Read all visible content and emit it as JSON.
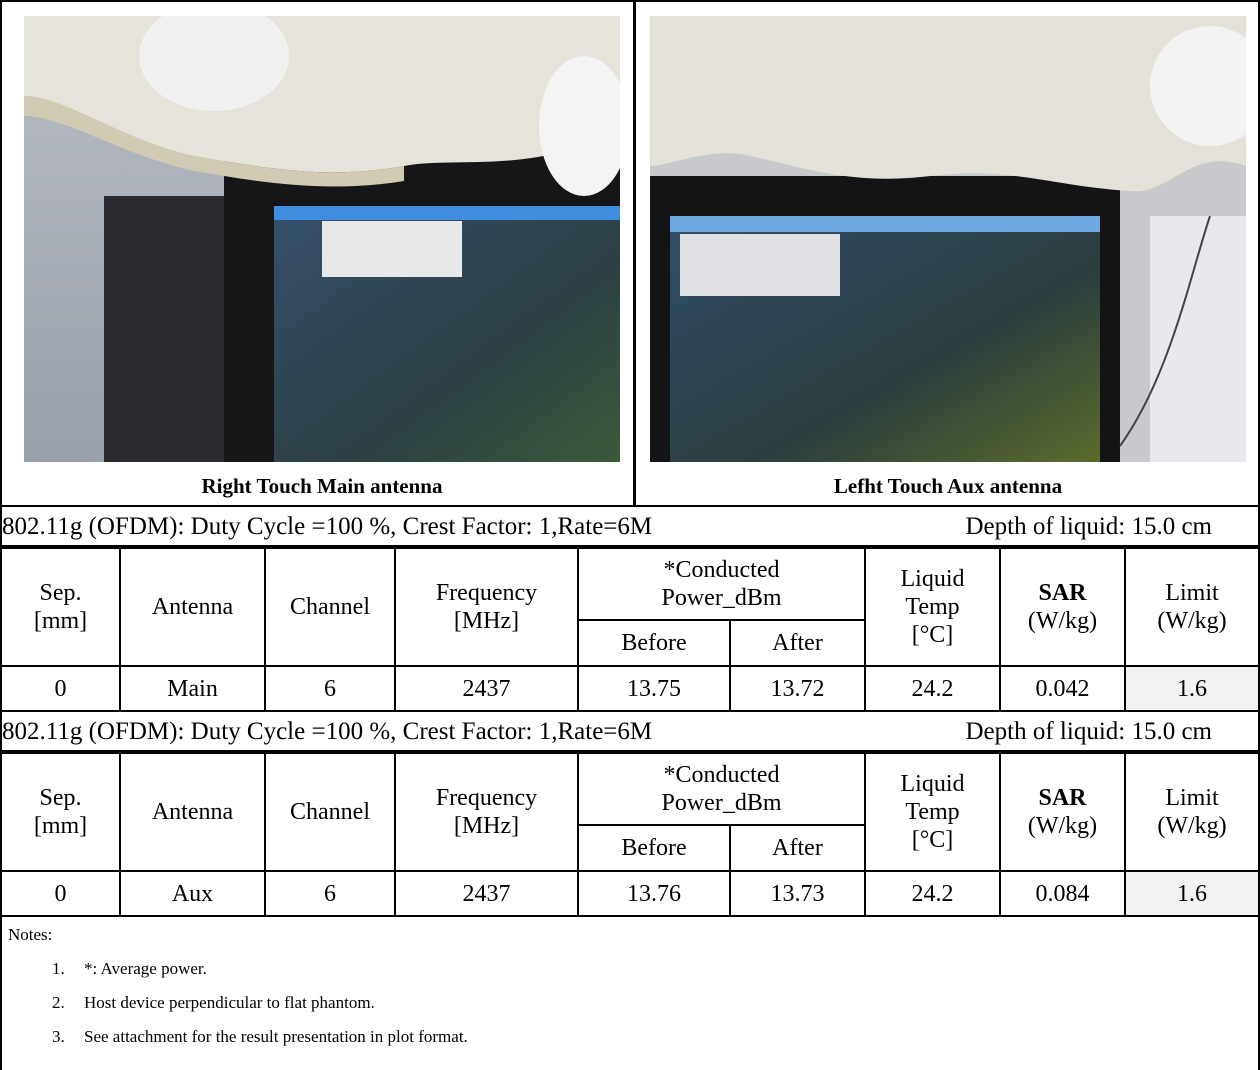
{
  "photos": [
    {
      "caption": "Right Touch Main antenna"
    },
    {
      "caption": "Lefht Touch Aux antenna"
    }
  ],
  "tables": [
    {
      "condition": "802.11g (OFDM): Duty Cycle =100 %, Crest Factor: 1,Rate=6M",
      "depth": "Depth of liquid: 15.0 cm",
      "headers": [
        [
          "Sep.",
          "[mm]"
        ],
        [
          "Antenna"
        ],
        [
          "Channel"
        ],
        [
          "Frequency",
          "[MHz]"
        ],
        [
          "*Conducted",
          "Power_dBm"
        ],
        [
          "Before"
        ],
        [
          "After"
        ],
        [
          "Liquid",
          "Temp",
          "[°C]"
        ],
        [
          "SAR",
          "(W/kg)"
        ],
        [
          "Limit",
          "(W/kg)"
        ]
      ],
      "row": [
        0,
        "Main",
        6,
        2437,
        13.75,
        13.72,
        24.2,
        0.042,
        1.6
      ]
    },
    {
      "condition": "802.11g (OFDM): Duty Cycle =100 %, Crest Factor: 1,Rate=6M",
      "depth": "Depth of liquid: 15.0 cm",
      "headers": [
        [
          "Sep.",
          "[mm]"
        ],
        [
          "Antenna"
        ],
        [
          "Channel"
        ],
        [
          "Frequency",
          "[MHz]"
        ],
        [
          "*Conducted",
          "Power_dBm"
        ],
        [
          "Before"
        ],
        [
          "After"
        ],
        [
          "Liquid",
          "Temp",
          "[°C]"
        ],
        [
          "SAR",
          "(W/kg)"
        ],
        [
          "Limit",
          "(W/kg)"
        ]
      ],
      "row": [
        0,
        "Aux",
        6,
        2437,
        13.76,
        13.73,
        24.2,
        0.084,
        1.6
      ]
    }
  ],
  "notes": {
    "title": "Notes:",
    "items": [
      {
        "num": "1.",
        "text": "*: Average power."
      },
      {
        "num": "2.",
        "text": "Host device perpendicular to flat  phantom."
      },
      {
        "num": "3.",
        "text": "See attachment for the result presentation in plot format."
      }
    ]
  }
}
